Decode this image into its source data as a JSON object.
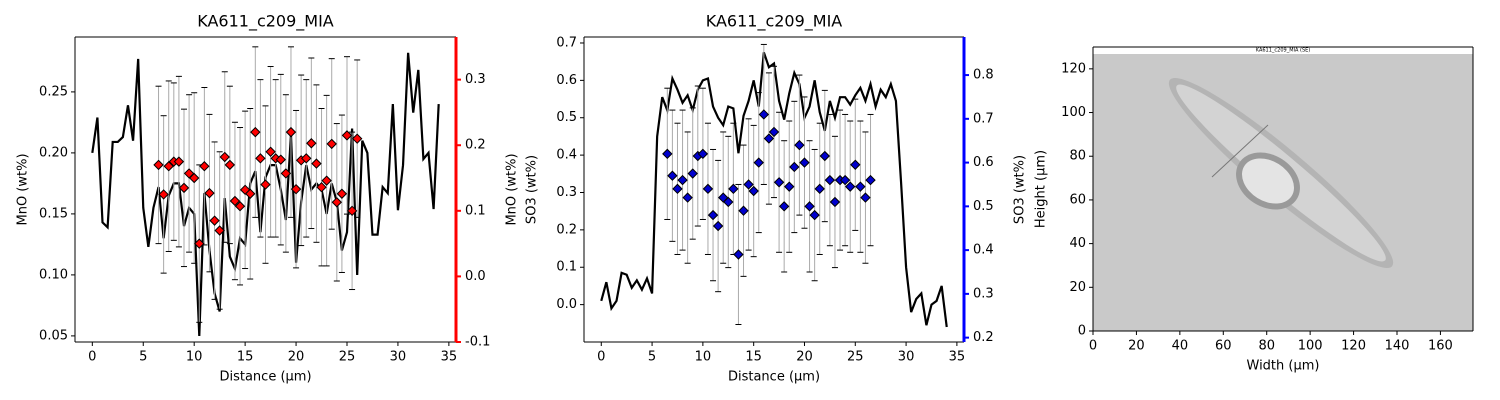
{
  "chart_data": [
    {
      "type": "line",
      "title": "KA611_c209_MIA",
      "xlabel": "Distance (µm)",
      "ylabel": "MnO (wt%)",
      "y2label": "MnO (wt%)",
      "y2color": "#ff0000",
      "xlim": [
        -1.7,
        35.7
      ],
      "xticks": [
        0,
        5,
        10,
        15,
        20,
        25,
        30,
        35
      ],
      "ylim": [
        0.045,
        0.295
      ],
      "yticks": [
        0.05,
        {
          "value": 0.1,
          "label": "0.10"
        },
        0.15,
        {
          "value": 0.2,
          "label": "0.20"
        },
        0.25
      ],
      "y2lim": [
        -0.1,
        0.365
      ],
      "y2ticks": [
        -0.1,
        {
          "value": 0,
          "label": "0.0"
        },
        0.1,
        0.2,
        0.3
      ],
      "series": [
        {
          "type": "line",
          "color": "#000000",
          "x": [
            0,
            0.5,
            1,
            1.5,
            2,
            2.5,
            3,
            3.5,
            4,
            4.5,
            5,
            5.5,
            6,
            6.5,
            7,
            7.5,
            8,
            8.5,
            9,
            9.5,
            10,
            10.5,
            11,
            11.5,
            12,
            12.5,
            13,
            13.5,
            14,
            14.5,
            15,
            15.5,
            16,
            16.5,
            17,
            17.5,
            18,
            18.5,
            19,
            19.5,
            20,
            20.5,
            21,
            21.5,
            22,
            22.5,
            23,
            23.5,
            24,
            24.5,
            25,
            25.5,
            26,
            26.5,
            27,
            27.5,
            28,
            28.5,
            29,
            29.5,
            30,
            30.5,
            31,
            31.5,
            32,
            32.5,
            33,
            33.5,
            34
          ],
          "values": [
            0.2,
            0.229,
            0.143,
            0.139,
            0.209,
            0.209,
            0.213,
            0.239,
            0.21,
            0.277,
            0.155,
            0.123,
            0.155,
            0.172,
            0.13,
            0.165,
            0.175,
            0.175,
            0.14,
            0.155,
            0.15,
            0.05,
            0.167,
            0.12,
            0.085,
            0.07,
            0.163,
            0.115,
            0.105,
            0.13,
            0.125,
            0.175,
            0.185,
            0.135,
            0.18,
            0.19,
            0.19,
            0.17,
            0.145,
            0.215,
            0.11,
            0.16,
            0.19,
            0.17,
            0.175,
            0.17,
            0.15,
            0.175,
            0.16,
            0.12,
            0.135,
            0.22,
            0.1,
            0.21,
            0.2,
            0.133,
            0.133,
            0.172,
            0.167,
            0.24,
            0.153,
            0.19,
            0.282,
            0.233,
            0.268,
            0.195,
            0.2,
            0.154,
            0.24
          ]
        },
        {
          "type": "scatter",
          "axis": "y2",
          "color": "#ff0000",
          "x": [
            6.5,
            7,
            7.5,
            8,
            8.5,
            9,
            9.5,
            10,
            10.5,
            11,
            11.5,
            12,
            12.5,
            13,
            13.5,
            14,
            14.5,
            15,
            15.5,
            16,
            16.5,
            17,
            17.5,
            18,
            18.5,
            19,
            19.5,
            20,
            20.5,
            21,
            21.5,
            22,
            22.5,
            23,
            23.5,
            24,
            24.5,
            25,
            25.5,
            26
          ],
          "values": [
            0.17,
            0.125,
            0.168,
            0.175,
            0.175,
            0.135,
            0.157,
            0.15,
            0.05,
            0.168,
            0.127,
            0.085,
            0.07,
            0.182,
            0.17,
            0.115,
            0.107,
            0.132,
            0.126,
            0.22,
            0.18,
            0.14,
            0.19,
            0.18,
            0.178,
            0.157,
            0.22,
            0.133,
            0.177,
            0.18,
            0.203,
            0.172,
            0.136,
            0.146,
            0.202,
            0.113,
            0.126,
            0.215,
            0.1,
            0.21
          ],
          "errors": [
            0.12,
            0.12,
            0.13,
            0.12,
            0.13,
            0.12,
            0.12,
            0.13,
            0.12,
            0.12,
            0.12,
            0.12,
            0.12,
            0.13,
            0.12,
            0.12,
            0.12,
            0.12,
            0.13,
            0.13,
            0.12,
            0.12,
            0.13,
            0.12,
            0.13,
            0.12,
            0.13,
            0.12,
            0.13,
            0.12,
            0.13,
            0.12,
            0.12,
            0.13,
            0.13,
            0.12,
            0.12,
            0.12,
            0.12,
            0.12
          ]
        }
      ]
    },
    {
      "type": "line",
      "title": "KA611_c209_MIA",
      "xlabel": "Distance (µm)",
      "ylabel": "SO3 (wt%)",
      "y2label": "SO3 (wt%)",
      "y2color": "#0000ff",
      "xlim": [
        -1.7,
        35.7
      ],
      "xticks": [
        0,
        5,
        10,
        15,
        20,
        25,
        30,
        35
      ],
      "ylim": [
        -0.1,
        0.716
      ],
      "yticks": [
        {
          "value": 0,
          "label": "0.0"
        },
        0.1,
        0.2,
        0.3,
        0.4,
        0.5,
        0.6,
        0.7
      ],
      "y2lim": [
        0.19,
        0.887
      ],
      "y2ticks": [
        0.2,
        0.3,
        0.4,
        0.5,
        0.6,
        0.7,
        0.8
      ],
      "series": [
        {
          "type": "line",
          "color": "#000000",
          "x": [
            0,
            0.5,
            1,
            1.5,
            2,
            2.5,
            3,
            3.5,
            4,
            4.5,
            5,
            5.5,
            6,
            6.5,
            7,
            7.5,
            8,
            8.5,
            9,
            9.5,
            10,
            10.5,
            11,
            11.5,
            12,
            12.5,
            13,
            13.5,
            14,
            14.5,
            15,
            15.5,
            16,
            16.5,
            17,
            17.5,
            18,
            18.5,
            19,
            19.5,
            20,
            20.5,
            21,
            21.5,
            22,
            22.5,
            23,
            23.5,
            24,
            24.5,
            25,
            25.5,
            26,
            26.5,
            27,
            27.5,
            28,
            28.5,
            29,
            29.5,
            30,
            30.5,
            31,
            31.5,
            32,
            32.5,
            33,
            33.5,
            34
          ],
          "values": [
            0.01,
            0.06,
            -0.01,
            0.01,
            0.085,
            0.08,
            0.045,
            0.065,
            0.04,
            0.07,
            0.03,
            0.45,
            0.555,
            0.52,
            0.605,
            0.575,
            0.54,
            0.56,
            0.52,
            0.575,
            0.6,
            0.605,
            0.53,
            0.5,
            0.48,
            0.53,
            0.525,
            0.405,
            0.505,
            0.545,
            0.6,
            0.53,
            0.675,
            0.635,
            0.645,
            0.545,
            0.495,
            0.565,
            0.62,
            0.59,
            0.5,
            0.53,
            0.6,
            0.515,
            0.465,
            0.545,
            0.5,
            0.555,
            0.555,
            0.535,
            0.56,
            0.58,
            0.545,
            0.59,
            0.53,
            0.575,
            0.555,
            0.59,
            0.545,
            0.33,
            0.1,
            -0.02,
            0.015,
            0.03,
            -0.055,
            0,
            0.01,
            0.05,
            -0.06
          ]
        },
        {
          "type": "scatter",
          "axis": "y2",
          "color": "#0000cd",
          "x": [
            6.5,
            7,
            7.5,
            8,
            8.5,
            9,
            9.5,
            10,
            10.5,
            11,
            11.5,
            12,
            12.5,
            13,
            13.5,
            14,
            14.5,
            15,
            15.5,
            16,
            16.5,
            17,
            17.5,
            18,
            18.5,
            19,
            19.5,
            20,
            20.5,
            21,
            21.5,
            22,
            22.5,
            23,
            23.5,
            24,
            24.5,
            25,
            25.5,
            26,
            26.5
          ],
          "values": [
            0.62,
            0.57,
            0.54,
            0.56,
            0.52,
            0.575,
            0.615,
            0.62,
            0.54,
            0.48,
            0.455,
            0.52,
            0.51,
            0.54,
            0.39,
            0.49,
            0.55,
            0.535,
            0.6,
            0.71,
            0.655,
            0.67,
            0.555,
            0.5,
            0.545,
            0.59,
            0.64,
            0.6,
            0.5,
            0.48,
            0.54,
            0.615,
            0.56,
            0.51,
            0.56,
            0.56,
            0.545,
            0.595,
            0.545,
            0.52,
            0.56
          ],
          "errors": [
            0.15,
            0.15,
            0.15,
            0.16,
            0.15,
            0.15,
            0.16,
            0.15,
            0.15,
            0.15,
            0.15,
            0.15,
            0.15,
            0.15,
            0.16,
            0.15,
            0.15,
            0.15,
            0.16,
            0.16,
            0.15,
            0.15,
            0.16,
            0.15,
            0.15,
            0.15,
            0.16,
            0.15,
            0.15,
            0.15,
            0.15,
            0.15,
            0.15,
            0.15,
            0.16,
            0.15,
            0.15,
            0.15,
            0.15,
            0.15,
            0.15
          ]
        }
      ]
    },
    {
      "type": "image",
      "caption": "KA611_c209_MIA (SE)",
      "xlabel": "Width (µm)",
      "ylabel": "Height (µm)",
      "xlim": [
        0,
        175
      ],
      "xticks": [
        0,
        20,
        40,
        60,
        80,
        100,
        120,
        140,
        160
      ],
      "ylim": [
        0,
        130
      ],
      "yticks": [
        0,
        20,
        40,
        60,
        80,
        100,
        120
      ]
    }
  ]
}
